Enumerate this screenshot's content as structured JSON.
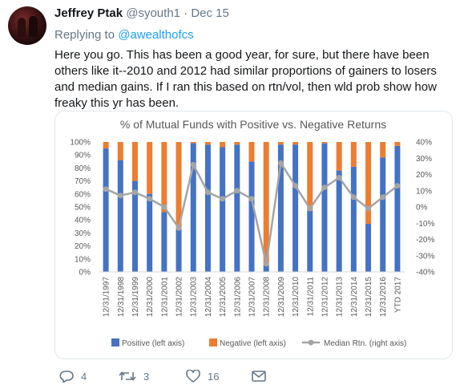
{
  "tweet": {
    "name": "Jeffrey Ptak",
    "handle": "@syouth1",
    "separator": "·",
    "date": "Dec 15",
    "replying_prefix": "Replying to",
    "replying_handle": "@awealthofcs",
    "text": "Here you go. This has been a good year, for sure, but there have been others like it--2010 and 2012 had similar proportions of gainers to losers and median gains. If I ran this based on rtn/vol, then wld prob show how freaky this yr has been."
  },
  "actions": {
    "reply_icon": "reply-icon",
    "reply_count": "4",
    "retweet_icon": "retweet-icon",
    "retweet_count": "3",
    "like_icon": "heart-icon",
    "like_count": "16",
    "dm_icon": "envelope-icon"
  },
  "colors": {
    "positive": "#4472c4",
    "negative": "#ed7d31",
    "median": "#a5a5a5"
  },
  "chart_data": {
    "type": "bar",
    "title": "% of Mutual Funds with Positive vs. Negative Returns",
    "categories": [
      "12/31/1997",
      "12/31/1998",
      "12/31/1999",
      "12/31/2000",
      "12/31/2001",
      "12/31/2002",
      "12/31/2003",
      "12/31/2004",
      "12/31/2005",
      "12/31/2006",
      "12/31/2007",
      "12/31/2008",
      "12/31/2009",
      "12/31/2010",
      "12/31/2011",
      "12/31/2012",
      "12/31/2013",
      "12/31/2014",
      "12/31/2015",
      "12/31/2016",
      "YTD 2017"
    ],
    "series": [
      {
        "name": "Positive (left axis)",
        "type": "bar",
        "axis": "left",
        "values": [
          95,
          86,
          70,
          60,
          46,
          33,
          99,
          98,
          96,
          98,
          85,
          5,
          98,
          98,
          47,
          99,
          78,
          81,
          37,
          88,
          97
        ]
      },
      {
        "name": "Negative (left axis)",
        "type": "bar",
        "axis": "left",
        "values": [
          5,
          14,
          30,
          40,
          54,
          67,
          1,
          2,
          4,
          2,
          15,
          95,
          2,
          2,
          53,
          1,
          22,
          19,
          63,
          12,
          3
        ]
      },
      {
        "name": "Median Rtn. (right axis)",
        "type": "line",
        "axis": "right",
        "values": [
          11,
          7,
          9,
          5,
          0,
          -13,
          26,
          9,
          5,
          10,
          5,
          -35,
          27,
          13,
          -1,
          12,
          18,
          6,
          -1,
          6,
          13
        ]
      }
    ],
    "y_left": {
      "min": 0,
      "max": 100,
      "ticks": [
        "0%",
        "10%",
        "20%",
        "30%",
        "40%",
        "50%",
        "60%",
        "70%",
        "80%",
        "90%",
        "100%"
      ]
    },
    "y_right": {
      "min": -40,
      "max": 40,
      "ticks": [
        "-40%",
        "-30%",
        "-20%",
        "-10%",
        "0%",
        "10%",
        "20%",
        "30%",
        "40%"
      ]
    },
    "grid": false,
    "legend_position": "bottom"
  }
}
